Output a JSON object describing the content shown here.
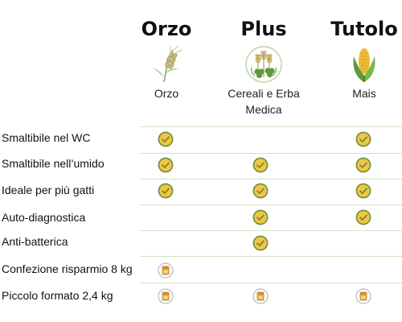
{
  "columns": [
    {
      "title": "Orzo",
      "label": "Orzo",
      "icon": "barley-icon"
    },
    {
      "title": "Plus",
      "label": "Cereali e Erba\nMedica",
      "icon": "cereals-clover-icon"
    },
    {
      "title": "Tutolo",
      "label": "Mais",
      "icon": "corn-icon"
    }
  ],
  "rows": [
    {
      "label": "Smaltibile nel WC",
      "values": [
        "check",
        "",
        "check"
      ]
    },
    {
      "label": "Smaltibile nell’umido",
      "values": [
        "check",
        "check",
        "check"
      ]
    },
    {
      "label": "Ideale per più gatti",
      "values": [
        "check",
        "check",
        "check"
      ]
    },
    {
      "label": "Auto-diagnostica",
      "values": [
        "",
        "check",
        "check"
      ]
    },
    {
      "label": "Anti-batterica",
      "values": [
        "",
        "check",
        ""
      ]
    },
    {
      "label": "Confezione risparmio 8 kg",
      "values": [
        "package",
        "",
        ""
      ]
    },
    {
      "label": "Piccolo formato 2,4 kg",
      "values": [
        "package",
        "package",
        "package"
      ]
    }
  ],
  "colors": {
    "check_fill": "#f4c542",
    "check_stroke": "#6a8e3a",
    "divider": "#cfe3c3",
    "leaf": "#7aa84a"
  }
}
